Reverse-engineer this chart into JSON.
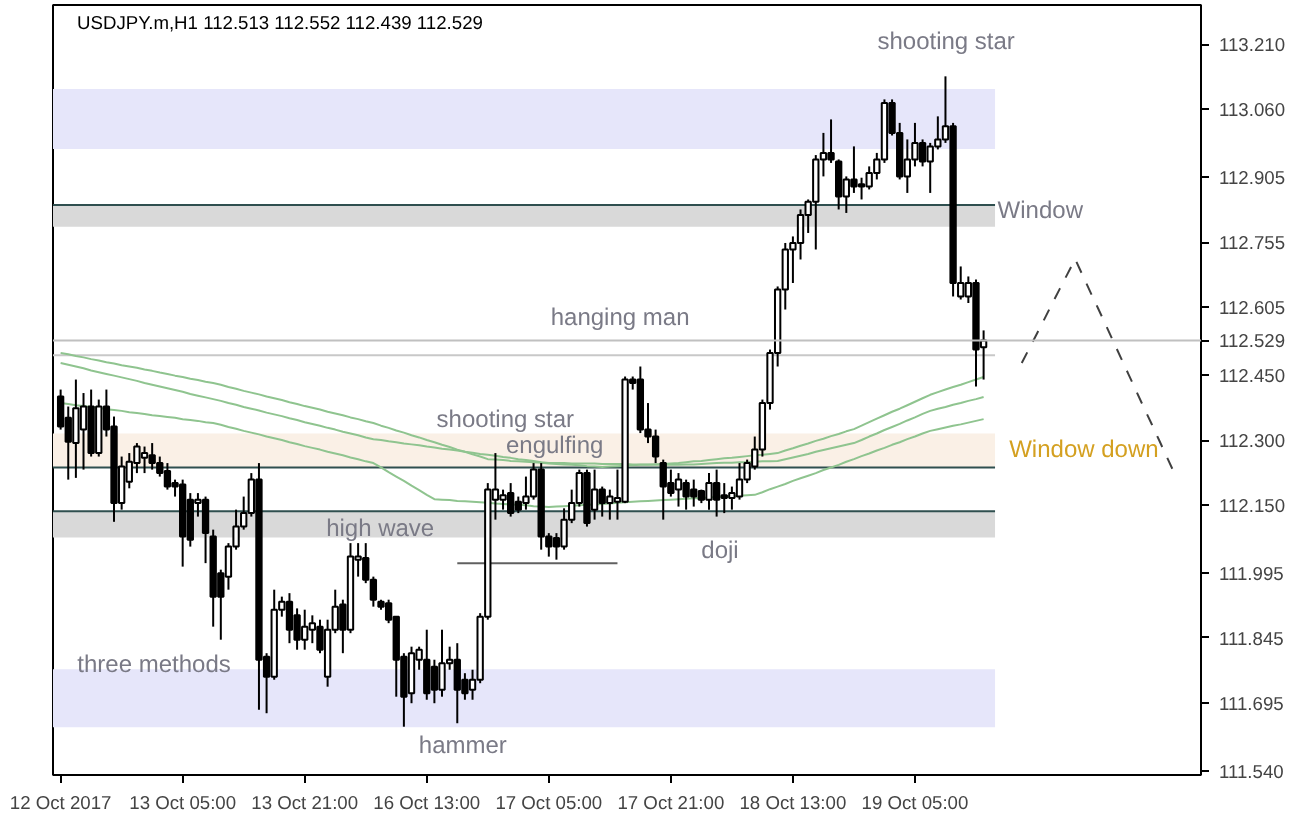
{
  "chart_data": {
    "type": "candlestick",
    "title": "USDJPY.m,H1  112.513 112.552 112.439 112.529",
    "categories": [
      "12 Oct 2017",
      null,
      null,
      null,
      null,
      null,
      null,
      null,
      null,
      null,
      null,
      null,
      null,
      null,
      null,
      null,
      "13 Oct 05:00",
      null,
      null,
      null,
      null,
      null,
      null,
      null,
      null,
      null,
      null,
      null,
      null,
      null,
      null,
      null,
      "13 Oct 21:00",
      null,
      null,
      null,
      null,
      null,
      null,
      null,
      null,
      null,
      null,
      null,
      null,
      null,
      null,
      null,
      "16 Oct 13:00",
      null,
      null,
      null,
      null,
      null,
      null,
      null,
      null,
      null,
      null,
      null,
      null,
      null,
      null,
      null,
      "17 Oct 05:00",
      null,
      null,
      null,
      null,
      null,
      null,
      null,
      null,
      null,
      null,
      null,
      null,
      null,
      null,
      null,
      "17 Oct 21:00",
      null,
      null,
      null,
      null,
      null,
      null,
      null,
      null,
      null,
      null,
      null,
      null,
      null,
      null,
      null,
      "18 Oct 13:00",
      null,
      null,
      null,
      null,
      null,
      null,
      null,
      null,
      null,
      null,
      null,
      null,
      null,
      null,
      null,
      "19 Oct 05:00",
      null,
      null,
      null,
      null,
      null,
      null,
      null,
      null,
      null,
      null,
      null,
      null,
      null,
      null,
      null,
      null,
      null,
      null,
      null,
      null,
      null,
      null,
      null,
      null,
      null,
      null,
      null,
      null,
      null,
      null,
      null,
      null,
      null,
      null,
      null,
      null,
      null
    ],
    "ohlc": [
      [
        112.4,
        112.416,
        112.324,
        112.331
      ],
      [
        112.351,
        112.377,
        112.209,
        112.296
      ],
      [
        112.293,
        112.439,
        112.213,
        112.373
      ],
      [
        112.324,
        112.408,
        112.232,
        112.377
      ],
      [
        112.377,
        112.416,
        112.262,
        112.27
      ],
      [
        112.27,
        112.393,
        112.262,
        112.377
      ],
      [
        112.377,
        112.416,
        112.308,
        112.324
      ],
      [
        112.331,
        112.354,
        112.112,
        112.155
      ],
      [
        112.155,
        112.262,
        112.14,
        112.239
      ],
      [
        112.204,
        112.27,
        112.189,
        112.25
      ],
      [
        112.247,
        112.293,
        112.224,
        112.285
      ],
      [
        112.259,
        112.285,
        112.224,
        112.27
      ],
      [
        112.265,
        112.293,
        112.232,
        112.247
      ],
      [
        112.247,
        112.262,
        112.216,
        112.224
      ],
      [
        112.229,
        112.247,
        112.186,
        112.193
      ],
      [
        112.201,
        112.209,
        112.17,
        112.193
      ],
      [
        112.198,
        112.209,
        112.009,
        112.078
      ],
      [
        112.163,
        112.178,
        112.055,
        112.071
      ],
      [
        112.155,
        112.178,
        112.124,
        112.163
      ],
      [
        112.163,
        112.17,
        112.017,
        112.086
      ],
      [
        112.078,
        112.094,
        111.871,
        111.94
      ],
      [
        111.994,
        112.002,
        111.841,
        111.94
      ],
      [
        111.986,
        112.063,
        111.956,
        112.055
      ],
      [
        112.055,
        112.14,
        112.048,
        112.101
      ],
      [
        112.101,
        112.17,
        112.094,
        112.132
      ],
      [
        112.132,
        112.224,
        112.124,
        112.209
      ],
      [
        112.209,
        112.247,
        111.68,
        111.795
      ],
      [
        111.802,
        111.81,
        111.672,
        111.756
      ],
      [
        111.756,
        111.956,
        111.749,
        111.91
      ],
      [
        111.91,
        111.94,
        111.894,
        111.928
      ],
      [
        111.928,
        111.948,
        111.833,
        111.864
      ],
      [
        111.897,
        111.913,
        111.818,
        111.841
      ],
      [
        111.841,
        111.91,
        111.818,
        111.871
      ],
      [
        111.864,
        111.897,
        111.833,
        111.879
      ],
      [
        111.871,
        111.887,
        111.81,
        111.818
      ],
      [
        111.756,
        111.887,
        111.733,
        111.864
      ],
      [
        111.864,
        111.956,
        111.856,
        111.917
      ],
      [
        111.922,
        111.933,
        111.81,
        111.864
      ],
      [
        111.864,
        112.063,
        111.856,
        112.032
      ],
      [
        112.025,
        112.063,
        111.986,
        112.032
      ],
      [
        112.029,
        112.063,
        111.971,
        111.979
      ],
      [
        111.979,
        111.986,
        111.917,
        111.933
      ],
      [
        111.928,
        111.933,
        111.91,
        111.917
      ],
      [
        111.925,
        111.933,
        111.879,
        111.887
      ],
      [
        111.894,
        111.894,
        111.71,
        111.795
      ],
      [
        111.802,
        111.81,
        111.641,
        111.71
      ],
      [
        111.718,
        111.825,
        111.695,
        111.81
      ],
      [
        111.795,
        111.825,
        111.772,
        111.818
      ],
      [
        111.795,
        111.864,
        111.703,
        111.718
      ],
      [
        111.779,
        111.795,
        111.695,
        111.726
      ],
      [
        111.726,
        111.864,
        111.71,
        111.787
      ],
      [
        111.787,
        111.825,
        111.772,
        111.795
      ],
      [
        111.795,
        111.833,
        111.649,
        111.726
      ],
      [
        111.749,
        111.764,
        111.703,
        111.718
      ],
      [
        111.726,
        111.772,
        111.703,
        111.749
      ],
      [
        111.749,
        111.902,
        111.741,
        111.894
      ],
      [
        111.894,
        112.201,
        111.887,
        112.186
      ],
      [
        112.163,
        112.27,
        112.117,
        112.186
      ],
      [
        112.163,
        112.186,
        112.14,
        112.173
      ],
      [
        112.178,
        112.201,
        112.124,
        112.132
      ],
      [
        112.158,
        112.17,
        112.132,
        112.14
      ],
      [
        112.155,
        112.216,
        112.14,
        112.17
      ],
      [
        112.17,
        112.247,
        112.163,
        112.232
      ],
      [
        112.232,
        112.247,
        112.048,
        112.078
      ],
      [
        112.078,
        112.086,
        112.032,
        112.055
      ],
      [
        112.075,
        112.086,
        112.025,
        112.055
      ],
      [
        112.055,
        112.143,
        112.048,
        112.117
      ],
      [
        112.117,
        112.186,
        112.109,
        112.155
      ],
      [
        112.155,
        112.232,
        112.147,
        112.224
      ],
      [
        112.224,
        112.232,
        112.101,
        112.109
      ],
      [
        112.14,
        112.232,
        112.117,
        112.186
      ],
      [
        112.186,
        112.193,
        112.124,
        112.155
      ],
      [
        112.155,
        112.186,
        112.117,
        112.17
      ],
      [
        112.158,
        112.232,
        112.117,
        112.167
      ],
      [
        112.158,
        112.446,
        112.155,
        112.439
      ],
      [
        112.439,
        112.446,
        112.416,
        112.431
      ],
      [
        112.439,
        112.469,
        112.316,
        112.324
      ],
      [
        112.324,
        112.385,
        112.293,
        112.308
      ],
      [
        112.308,
        112.324,
        112.247,
        112.262
      ],
      [
        112.247,
        112.255,
        112.117,
        112.193
      ],
      [
        112.201,
        112.232,
        112.17,
        112.178
      ],
      [
        112.186,
        112.224,
        112.147,
        112.209
      ],
      [
        112.201,
        112.209,
        112.14,
        112.17
      ],
      [
        112.186,
        112.209,
        112.147,
        112.17
      ],
      [
        112.183,
        112.186,
        112.155,
        112.163
      ],
      [
        112.163,
        112.224,
        112.14,
        112.201
      ],
      [
        112.201,
        112.232,
        112.124,
        112.163
      ],
      [
        112.173,
        112.201,
        112.132,
        112.167
      ],
      [
        112.167,
        112.193,
        112.14,
        112.178
      ],
      [
        112.17,
        112.247,
        112.163,
        112.209
      ],
      [
        112.209,
        112.255,
        112.201,
        112.247
      ],
      [
        112.239,
        112.308,
        112.232,
        112.278
      ],
      [
        112.278,
        112.393,
        112.262,
        112.385
      ],
      [
        112.385,
        112.508,
        112.37,
        112.5
      ],
      [
        112.5,
        112.653,
        112.469,
        112.646
      ],
      [
        112.646,
        112.753,
        112.6,
        112.738
      ],
      [
        112.738,
        112.768,
        112.661,
        112.753
      ],
      [
        112.753,
        112.83,
        112.715,
        112.817
      ],
      [
        112.817,
        112.853,
        112.776,
        112.848
      ],
      [
        112.848,
        112.955,
        112.738,
        112.945
      ],
      [
        112.945,
        113.006,
        112.906,
        112.96
      ],
      [
        112.96,
        113.037,
        112.937,
        112.945
      ],
      [
        112.94,
        112.945,
        112.83,
        112.86
      ],
      [
        112.86,
        112.906,
        112.822,
        112.899
      ],
      [
        112.899,
        112.975,
        112.868,
        112.883
      ],
      [
        112.888,
        112.903,
        112.853,
        112.883
      ],
      [
        112.883,
        112.929,
        112.876,
        112.914
      ],
      [
        112.914,
        112.96,
        112.899,
        112.945
      ],
      [
        112.945,
        113.083,
        112.937,
        113.075
      ],
      [
        113.075,
        113.083,
        113.0,
        113.006
      ],
      [
        113.006,
        113.029,
        112.899,
        112.906
      ],
      [
        112.906,
        112.991,
        112.868,
        112.945
      ],
      [
        112.945,
        113.029,
        112.929,
        112.983
      ],
      [
        112.983,
        112.991,
        112.929,
        112.94
      ],
      [
        112.94,
        112.983,
        112.868,
        112.975
      ],
      [
        112.975,
        113.044,
        112.968,
        112.991
      ],
      [
        112.991,
        113.136,
        112.983,
        113.021
      ],
      [
        113.021,
        113.029,
        112.63,
        112.661
      ],
      [
        112.63,
        112.699,
        112.623,
        112.661
      ],
      [
        112.63,
        112.676,
        112.615,
        112.661
      ],
      [
        112.661,
        112.669,
        112.423,
        112.508
      ],
      [
        112.513,
        112.552,
        112.439,
        112.529
      ],
      null,
      null,
      null,
      null,
      null,
      null,
      null,
      null,
      null,
      null,
      null,
      null,
      null,
      null,
      null,
      null,
      null,
      null,
      null,
      null,
      null,
      null,
      null,
      null,
      null,
      null,
      null,
      null
    ],
    "ylim": [
      111.53,
      113.3
    ],
    "yticks": [
      {
        "value": 113.21,
        "label": "113.210"
      },
      {
        "value": 113.06,
        "label": "113.060"
      },
      {
        "value": 112.905,
        "label": "112.905"
      },
      {
        "value": 112.755,
        "label": "112.755"
      },
      {
        "value": 112.605,
        "label": "112.605"
      },
      {
        "value": 112.45,
        "label": "112.450"
      },
      {
        "value": 112.3,
        "label": "112.300"
      },
      {
        "value": 112.15,
        "label": "112.150"
      },
      {
        "value": 111.995,
        "label": "111.995"
      },
      {
        "value": 111.845,
        "label": "111.845"
      },
      {
        "value": 111.695,
        "label": "111.695"
      },
      {
        "value": 111.54,
        "label": "111.540"
      }
    ],
    "series": [
      {
        "type": "line",
        "color": "#8fc48f",
        "values": [
          112.5,
          112.497,
          112.493,
          112.49,
          112.486,
          112.483,
          112.479,
          112.476,
          112.472,
          112.469,
          112.466,
          112.462,
          112.459,
          112.455,
          112.452,
          112.448,
          112.445,
          112.441,
          112.438,
          112.434,
          112.431,
          112.427,
          112.422,
          112.418,
          112.413,
          112.409,
          112.405,
          112.4,
          112.396,
          112.392,
          112.387,
          112.383,
          112.378,
          112.374,
          112.37,
          112.365,
          112.361,
          112.357,
          112.352,
          112.348,
          112.343,
          112.339,
          112.333,
          112.328,
          112.322,
          112.317,
          112.311,
          112.306,
          112.3,
          112.295,
          112.289,
          112.284,
          112.278,
          112.273,
          112.267,
          112.262,
          112.256,
          112.255,
          112.254,
          112.252,
          112.251,
          112.25,
          112.249,
          112.248,
          112.246,
          112.245,
          112.244,
          112.243,
          112.242,
          112.24,
          112.239,
          112.238,
          112.239,
          112.24,
          112.241,
          112.242,
          112.243,
          112.243,
          112.244,
          112.245,
          112.246,
          112.247,
          112.249,
          112.251,
          112.252,
          112.254,
          112.256,
          112.258,
          112.259,
          112.261,
          112.263,
          112.265,
          112.266,
          112.268,
          112.27,
          112.276,
          112.281,
          112.287,
          112.292,
          112.298,
          112.303,
          112.309,
          112.314,
          112.32,
          112.325,
          112.333,
          112.341,
          112.349,
          112.357,
          112.365,
          112.372,
          112.38,
          112.388,
          112.396,
          112.404,
          112.41,
          112.416,
          112.422,
          112.427,
          112.433,
          112.439,
          112.445,
          null,
          null,
          null,
          null,
          null,
          null,
          null,
          null,
          null,
          null,
          null,
          null,
          null,
          null,
          null,
          null,
          null,
          null,
          null,
          null,
          null,
          null,
          null,
          null,
          null,
          null,
          null,
          null
        ]
      },
      {
        "type": "line",
        "color": "#8fc48f",
        "values": [
          112.477,
          112.473,
          112.469,
          112.465,
          112.46,
          112.456,
          112.452,
          112.448,
          112.444,
          112.44,
          112.436,
          112.431,
          112.427,
          112.423,
          112.419,
          112.415,
          112.411,
          112.406,
          112.402,
          112.398,
          112.394,
          112.39,
          112.385,
          112.381,
          112.376,
          112.372,
          112.368,
          112.363,
          112.359,
          112.355,
          112.35,
          112.346,
          112.341,
          112.337,
          112.333,
          112.328,
          112.324,
          112.319,
          112.315,
          112.311,
          112.306,
          112.302,
          112.3,
          112.297,
          112.295,
          112.292,
          112.29,
          112.288,
          112.285,
          112.283,
          112.28,
          112.278,
          112.276,
          112.273,
          112.271,
          112.268,
          112.266,
          112.264,
          112.261,
          112.259,
          112.256,
          112.254,
          112.252,
          112.249,
          112.247,
          112.247,
          112.247,
          112.246,
          112.246,
          112.246,
          112.246,
          112.245,
          112.245,
          112.245,
          112.245,
          112.244,
          112.244,
          112.244,
          112.244,
          112.243,
          112.243,
          112.243,
          112.244,
          112.244,
          112.245,
          112.246,
          112.247,
          112.248,
          112.248,
          112.249,
          112.249,
          112.25,
          112.251,
          112.251,
          112.252,
          112.256,
          112.26,
          112.264,
          112.268,
          112.273,
          112.277,
          112.281,
          112.285,
          112.289,
          112.293,
          112.3,
          112.308,
          112.315,
          112.323,
          112.33,
          112.337,
          112.345,
          112.352,
          112.36,
          112.367,
          112.372,
          112.376,
          112.381,
          112.385,
          112.39,
          112.394,
          112.399,
          null,
          null,
          null,
          null,
          null,
          null,
          null,
          null,
          null,
          null,
          null,
          null,
          null,
          null,
          null,
          null,
          null,
          null,
          null,
          null,
          null,
          null,
          null,
          null,
          null,
          null,
          null,
          null
        ]
      },
      {
        "type": "line",
        "color": "#8fc48f",
        "values": [
          112.385,
          112.383,
          112.38,
          112.378,
          112.376,
          112.374,
          112.371,
          112.369,
          112.367,
          112.364,
          112.362,
          112.36,
          112.357,
          112.355,
          112.353,
          112.351,
          112.348,
          112.346,
          112.344,
          112.341,
          112.339,
          112.335,
          112.33,
          112.326,
          112.321,
          112.317,
          112.313,
          112.308,
          112.304,
          112.3,
          112.295,
          112.291,
          112.286,
          112.282,
          112.278,
          112.273,
          112.269,
          112.265,
          112.26,
          112.256,
          112.251,
          112.247,
          112.237,
          112.226,
          112.216,
          112.206,
          112.195,
          112.185,
          112.174,
          112.164,
          112.163,
          112.162,
          112.16,
          112.159,
          112.158,
          112.157,
          112.156,
          112.154,
          112.153,
          112.152,
          112.151,
          112.15,
          112.148,
          112.147,
          112.146,
          112.147,
          112.148,
          112.149,
          112.15,
          112.151,
          112.152,
          112.153,
          112.154,
          112.156,
          112.157,
          112.158,
          112.159,
          112.16,
          112.161,
          112.162,
          112.163,
          112.164,
          112.165,
          112.166,
          112.167,
          112.168,
          112.169,
          112.17,
          112.171,
          112.172,
          112.173,
          112.174,
          112.18,
          112.187,
          112.193,
          112.199,
          112.206,
          112.212,
          112.218,
          112.224,
          112.231,
          112.237,
          112.243,
          112.25,
          112.256,
          112.263,
          112.269,
          112.276,
          112.282,
          112.289,
          112.295,
          112.302,
          112.308,
          112.315,
          112.321,
          112.325,
          112.329,
          112.333,
          112.336,
          112.34,
          112.344,
          112.348,
          null,
          null,
          null,
          null,
          null,
          null,
          null,
          null,
          null,
          null,
          null,
          null,
          null,
          null,
          null,
          null,
          null,
          null,
          null,
          null,
          null,
          null,
          null,
          null,
          null,
          null,
          null,
          null
        ]
      },
      {
        "type": "line",
        "color": "#606060",
        "values": [
          null,
          null,
          null,
          null,
          null,
          null,
          null,
          null,
          null,
          null,
          null,
          null,
          null,
          null,
          null,
          null,
          null,
          null,
          null,
          null,
          null,
          null,
          null,
          null,
          null,
          null,
          null,
          null,
          null,
          null,
          null,
          null,
          null,
          null,
          null,
          null,
          null,
          null,
          null,
          null,
          null,
          null,
          null,
          null,
          null,
          null,
          null,
          null,
          null,
          null,
          null,
          null,
          112.017,
          112.017,
          112.017,
          112.017,
          112.017,
          112.017,
          112.017,
          112.017,
          112.017,
          112.017,
          112.017,
          112.017,
          112.017,
          112.017,
          112.017,
          112.017,
          112.017,
          112.017,
          112.017,
          112.017,
          112.017,
          112.017,
          null,
          null,
          null,
          null,
          null,
          null,
          null,
          null,
          null,
          null,
          null,
          null,
          null,
          null,
          null,
          null,
          null,
          null,
          null,
          null,
          null,
          null,
          null,
          null,
          null,
          null,
          null,
          null,
          null,
          null,
          null,
          null,
          null,
          null,
          null,
          null,
          null,
          null,
          null,
          null,
          null,
          null,
          null,
          null,
          null,
          null,
          null,
          null,
          null,
          null,
          null,
          null,
          null,
          null,
          null,
          null,
          null,
          null,
          null,
          null,
          null,
          null,
          null,
          null,
          null,
          null,
          null,
          null,
          null,
          null,
          null,
          null,
          null,
          null,
          null,
          null
        ]
      },
      {
        "type": "line",
        "color": "#404040",
        "line_style": "dashed",
        "values": [
          null,
          null,
          null,
          null,
          null,
          null,
          null,
          null,
          null,
          null,
          null,
          null,
          null,
          null,
          null,
          null,
          null,
          null,
          null,
          null,
          null,
          null,
          null,
          null,
          null,
          null,
          null,
          null,
          null,
          null,
          null,
          null,
          null,
          null,
          null,
          null,
          null,
          null,
          null,
          null,
          null,
          null,
          null,
          null,
          null,
          null,
          null,
          null,
          null,
          null,
          null,
          null,
          null,
          null,
          null,
          null,
          null,
          null,
          null,
          null,
          null,
          null,
          null,
          null,
          null,
          null,
          null,
          null,
          null,
          null,
          null,
          null,
          null,
          null,
          null,
          null,
          null,
          null,
          null,
          null,
          null,
          null,
          null,
          null,
          null,
          null,
          null,
          null,
          null,
          null,
          null,
          null,
          null,
          null,
          null,
          null,
          null,
          null,
          null,
          null,
          null,
          null,
          null,
          null,
          null,
          null,
          null,
          null,
          null,
          null,
          null,
          null,
          null,
          null,
          null,
          null,
          null,
          null,
          null,
          null,
          null,
          null,
          null,
          null,
          null,
          null,
          112.477,
          112.511,
          112.545,
          112.579,
          112.614,
          112.648,
          112.682,
          112.716,
          112.678,
          112.64,
          112.603,
          112.565,
          112.527,
          112.489,
          112.451,
          112.413,
          112.375,
          112.338,
          112.3,
          112.262,
          112.224,
          null,
          null,
          null
        ]
      }
    ],
    "bands": [
      {
        "axis": "y",
        "from": 112.969,
        "to": 113.107,
        "color": "#e6e6fa"
      },
      {
        "axis": "y",
        "from": 112.79,
        "to": 112.84,
        "color": "#d9d9d9"
      },
      {
        "axis": "y",
        "from": 112.237,
        "to": 112.315,
        "color": "#faf0e6"
      },
      {
        "axis": "y",
        "from": 112.076,
        "to": 112.136,
        "color": "#d9d9d9"
      },
      {
        "axis": "y",
        "from": 111.64,
        "to": 111.773,
        "color": "#e6e6fa"
      }
    ],
    "ref_lines": [
      {
        "axis": "y",
        "value": 112.84,
        "color": "#2f4f4f"
      },
      {
        "axis": "y",
        "value": 112.237,
        "color": "#2f4f4f"
      },
      {
        "axis": "y",
        "value": 112.136,
        "color": "#2f4f4f"
      },
      {
        "axis": "y",
        "value": 112.495,
        "color": "#c8c8c8"
      },
      {
        "axis": "y",
        "value": 112.529,
        "label": "112.529",
        "color": "#c0c0c0"
      }
    ],
    "annotations": [
      "shooting star",
      "Window",
      "hanging man",
      "shooting star",
      "engulfing",
      "Window down",
      "high wave",
      "doji",
      "three methods",
      "hammer"
    ]
  }
}
